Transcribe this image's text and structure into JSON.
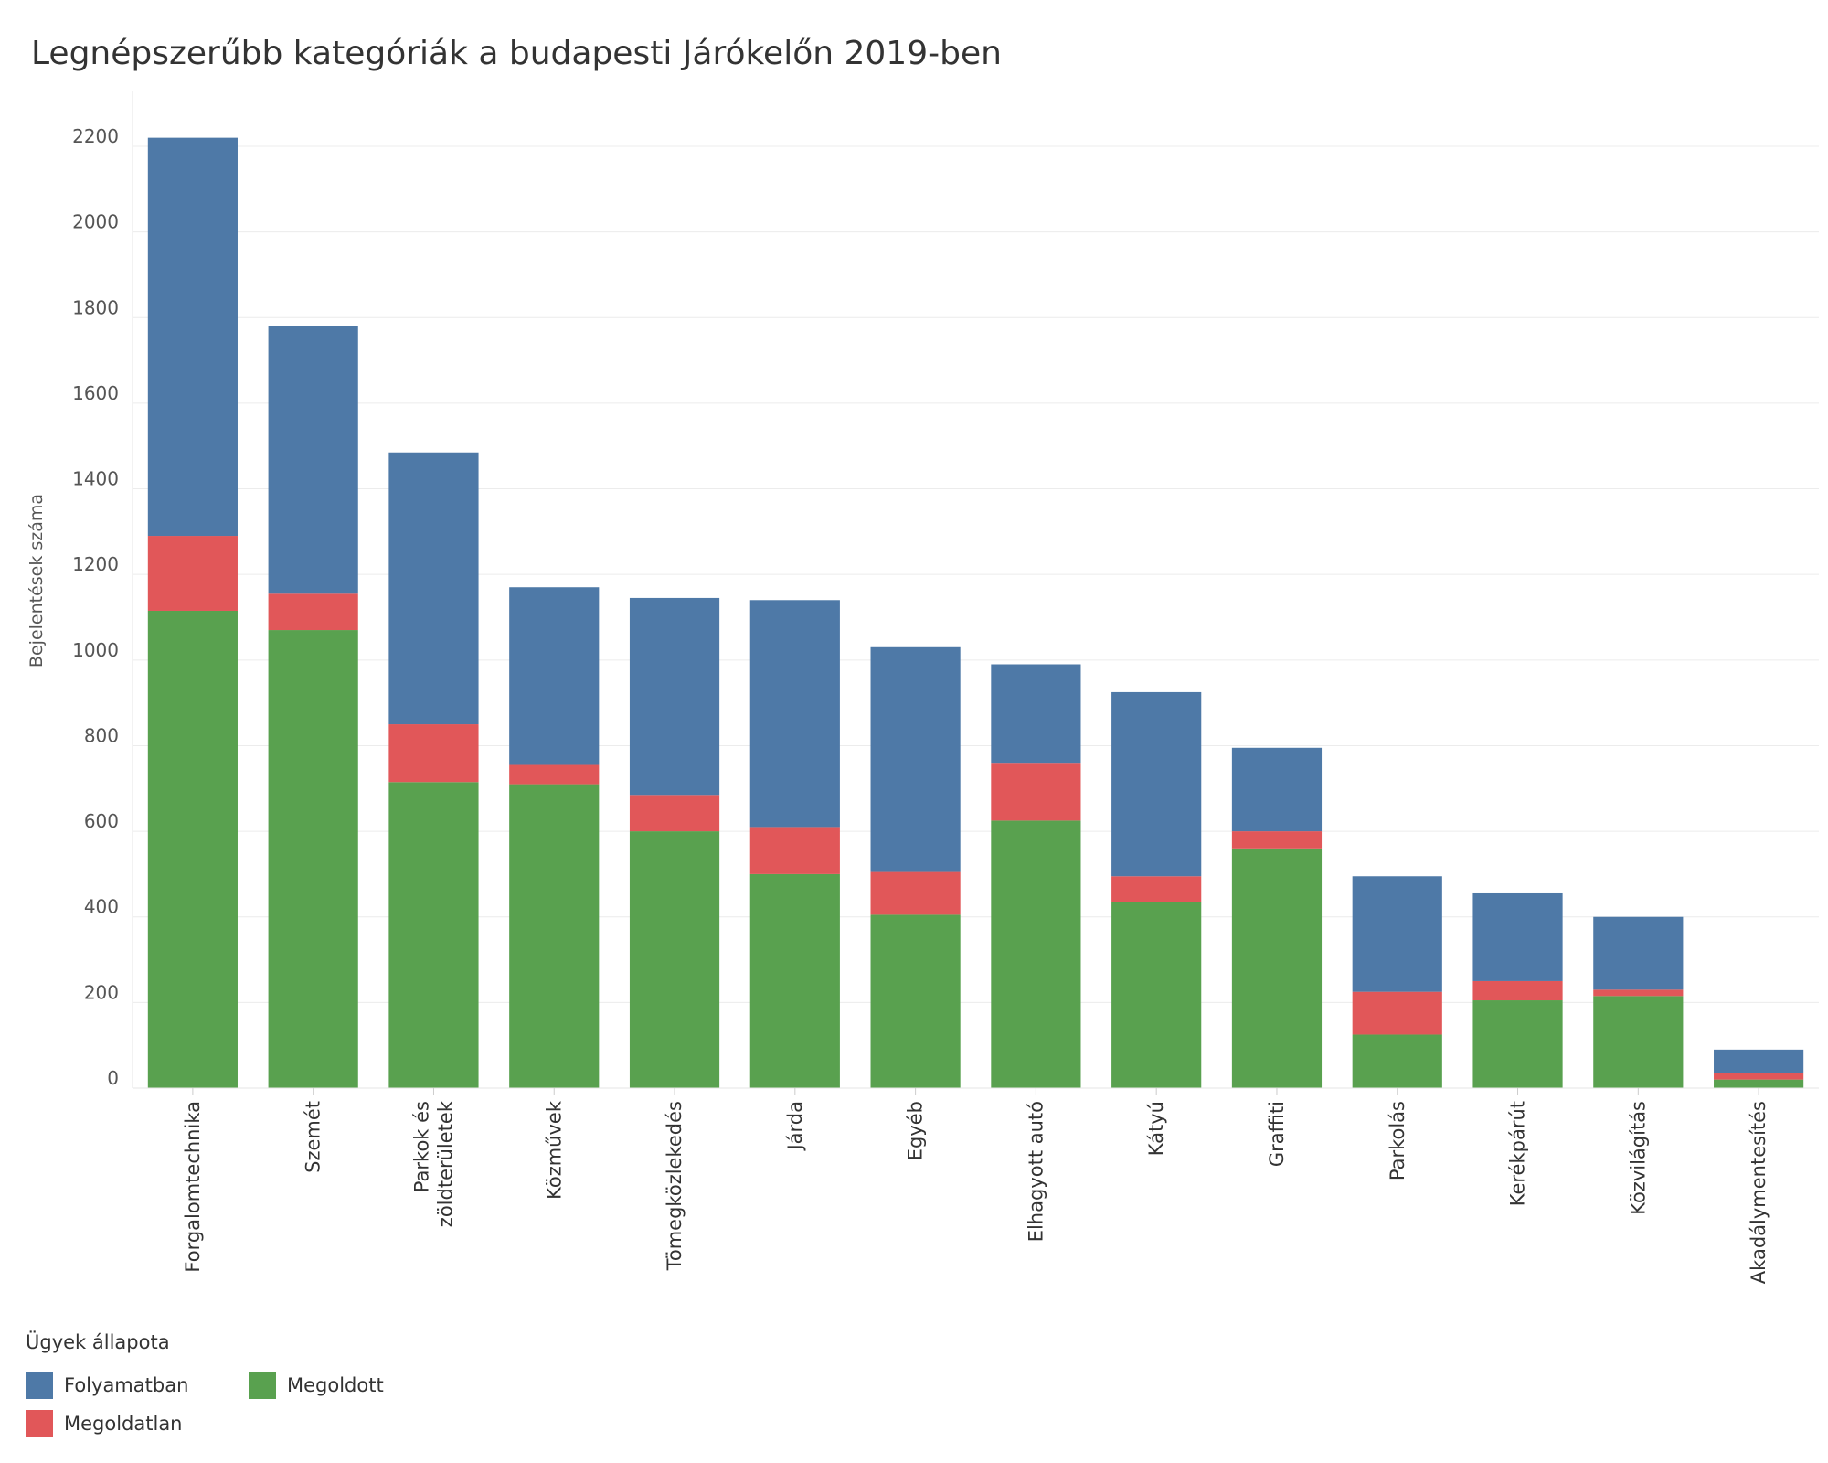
{
  "chart_data": {
    "type": "bar",
    "stacked": true,
    "title": "Legnépszerűbb kategóriák a budapesti Járókelőn 2019-ben",
    "xlabel": "",
    "ylabel": "Bejelentések száma",
    "ylim": [
      0,
      2200
    ],
    "yticks": [
      0,
      200,
      400,
      600,
      800,
      1000,
      1200,
      1400,
      1600,
      1800,
      2000,
      2200
    ],
    "grid": true,
    "categories": [
      [
        "Forgalomtechnika"
      ],
      [
        "Szemét"
      ],
      [
        "Parkok és",
        "zöldterületek"
      ],
      [
        "Közművek"
      ],
      [
        "Tömegközlekedés"
      ],
      [
        "Járda"
      ],
      [
        "Egyéb"
      ],
      [
        "Elhagyott autó"
      ],
      [
        "Kátyú"
      ],
      [
        "Graffiti"
      ],
      [
        "Parkolás"
      ],
      [
        "Kerékpárút"
      ],
      [
        "Közvilágítás"
      ],
      [
        "Akadálymentesítés"
      ]
    ],
    "series": [
      {
        "name": "Megoldott",
        "color": "#59a14f",
        "values": [
          1115,
          1070,
          715,
          710,
          600,
          500,
          405,
          625,
          435,
          560,
          125,
          205,
          215,
          20
        ]
      },
      {
        "name": "Megoldatlan",
        "color": "#e15759",
        "values": [
          175,
          85,
          135,
          45,
          85,
          110,
          100,
          135,
          60,
          40,
          100,
          45,
          15,
          15
        ]
      },
      {
        "name": "Folyamatban",
        "color": "#4e79a7",
        "values": [
          930,
          625,
          635,
          415,
          460,
          530,
          525,
          230,
          430,
          195,
          270,
          205,
          170,
          55
        ]
      }
    ],
    "legend": {
      "title": "Ügyek állapota",
      "position": "bottom-left",
      "entries": [
        {
          "label": "Folyamatban",
          "color": "#4e79a7"
        },
        {
          "label": "Megoldott",
          "color": "#59a14f"
        },
        {
          "label": "Megoldatlan",
          "color": "#e15759"
        }
      ]
    }
  }
}
